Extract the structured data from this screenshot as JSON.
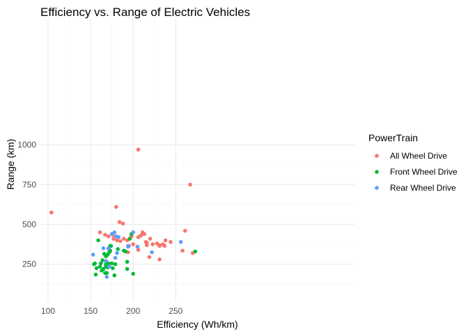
{
  "chart_data": {
    "type": "scatter",
    "title": "Efficiency vs. Range of Electric Vehicles",
    "xlabel": "Efficiency (Wh/km)",
    "ylabel": "Range (km)",
    "xlim": [
      100,
      275
    ],
    "ylim": [
      165,
      1000
    ],
    "x_ticks": [
      100,
      150,
      200,
      250
    ],
    "y_ticks": [
      250,
      500,
      750,
      1000
    ],
    "grid": true,
    "legend": {
      "title": "PowerTrain",
      "position": "right"
    },
    "series": [
      {
        "name": "All Wheel Drive",
        "color": "#F8766D",
        "points": [
          [
            104,
            575
          ],
          [
            161,
            450
          ],
          [
            167,
            435
          ],
          [
            171,
            425
          ],
          [
            171,
            350
          ],
          [
            172,
            340
          ],
          [
            176,
            435
          ],
          [
            177,
            410
          ],
          [
            180,
            610
          ],
          [
            181,
            400
          ],
          [
            184,
            515
          ],
          [
            185,
            395
          ],
          [
            188,
            505
          ],
          [
            189,
            410
          ],
          [
            193,
            400
          ],
          [
            194,
            325
          ],
          [
            195,
            365
          ],
          [
            198,
            425
          ],
          [
            200,
            375
          ],
          [
            206,
            970
          ],
          [
            206,
            340
          ],
          [
            206,
            420
          ],
          [
            209,
            430
          ],
          [
            211,
            450
          ],
          [
            213,
            440
          ],
          [
            215,
            390
          ],
          [
            216,
            385
          ],
          [
            216,
            370
          ],
          [
            219,
            295
          ],
          [
            220,
            410
          ],
          [
            223,
            375
          ],
          [
            228,
            380
          ],
          [
            231,
            370
          ],
          [
            231,
            280
          ],
          [
            231,
            365
          ],
          [
            235,
            375
          ],
          [
            237,
            365
          ],
          [
            238,
            400
          ],
          [
            244,
            390
          ],
          [
            258,
            335
          ],
          [
            261,
            460
          ],
          [
            267,
            750
          ],
          [
            270,
            320
          ]
        ]
      },
      {
        "name": "Front Wheel Drive",
        "color": "#00BA38",
        "points": [
          [
            154,
            250
          ],
          [
            155,
            255
          ],
          [
            156,
            185
          ],
          [
            157,
            225
          ],
          [
            159,
            400
          ],
          [
            161,
            235
          ],
          [
            162,
            255
          ],
          [
            163,
            210
          ],
          [
            164,
            275
          ],
          [
            165,
            220
          ],
          [
            166,
            315
          ],
          [
            167,
            195
          ],
          [
            168,
            235
          ],
          [
            168,
            300
          ],
          [
            168,
            250
          ],
          [
            169,
            195
          ],
          [
            170,
            310
          ],
          [
            170,
            230
          ],
          [
            171,
            255
          ],
          [
            172,
            325
          ],
          [
            173,
            365
          ],
          [
            173,
            335
          ],
          [
            174,
            365
          ],
          [
            175,
            255
          ],
          [
            176,
            225
          ],
          [
            178,
            180
          ],
          [
            179,
            250
          ],
          [
            182,
            345
          ],
          [
            189,
            335
          ],
          [
            191,
            330
          ],
          [
            193,
            265
          ],
          [
            193,
            220
          ],
          [
            196,
            410
          ],
          [
            198,
            440
          ],
          [
            200,
            190
          ],
          [
            273,
            330
          ]
        ]
      },
      {
        "name": "Rear Wheel Drive",
        "color": "#619CFF",
        "points": [
          [
            153,
            310
          ],
          [
            165,
            350
          ],
          [
            168,
            270
          ],
          [
            169,
            170
          ],
          [
            171,
            350
          ],
          [
            172,
            235
          ],
          [
            175,
            440
          ],
          [
            178,
            450
          ],
          [
            179,
            290
          ],
          [
            180,
            425
          ],
          [
            181,
            320
          ],
          [
            183,
            420
          ],
          [
            194,
            365
          ],
          [
            194,
            360
          ],
          [
            200,
            450
          ],
          [
            205,
            360
          ],
          [
            222,
            325
          ],
          [
            256,
            390
          ]
        ]
      }
    ]
  }
}
